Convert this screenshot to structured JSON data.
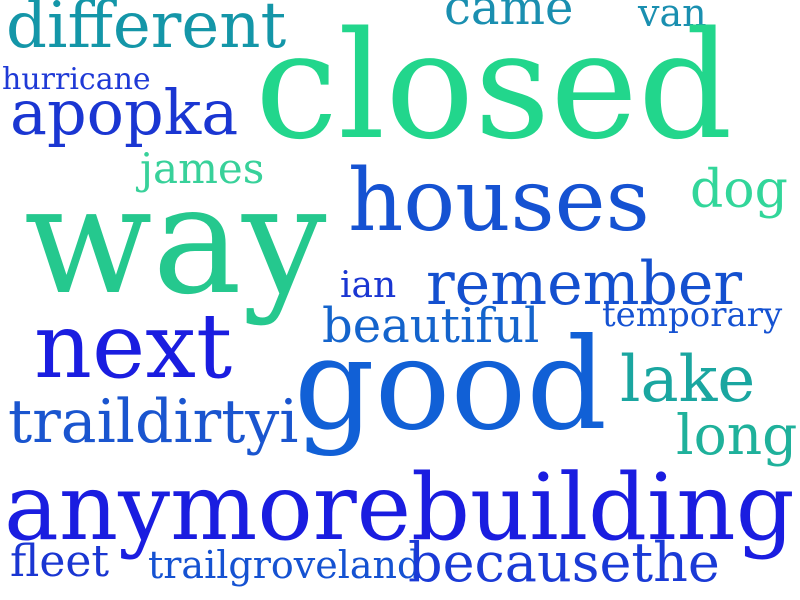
{
  "words": [
    {
      "text": "different",
      "color": "#1496a8"
    },
    {
      "text": "came",
      "color": "#1a8fb0"
    },
    {
      "text": "van",
      "color": "#1a8fb0"
    },
    {
      "text": "closed",
      "color": "#22d68c"
    },
    {
      "text": "hurricane",
      "color": "#1f3ad6"
    },
    {
      "text": "apopka",
      "color": "#1a36d2"
    },
    {
      "text": "james",
      "color": "#38d19a"
    },
    {
      "text": "dog",
      "color": "#32d69a"
    },
    {
      "text": "way",
      "color": "#25c88e"
    },
    {
      "text": "houses",
      "color": "#1552d2"
    },
    {
      "text": "ian",
      "color": "#1a36d2"
    },
    {
      "text": "remember",
      "color": "#1450cf"
    },
    {
      "text": "temporary",
      "color": "#1552d2"
    },
    {
      "text": "next",
      "color": "#1a1de0"
    },
    {
      "text": "beautiful",
      "color": "#1464cc"
    },
    {
      "text": "good",
      "color": "#1160d6"
    },
    {
      "text": "lake",
      "color": "#1aa6a0"
    },
    {
      "text": "traildirtyi",
      "color": "#1a55cf"
    },
    {
      "text": "long",
      "color": "#1fb19b"
    },
    {
      "text": "anymorebuilding",
      "color": "#1a1de0"
    },
    {
      "text": "fleet",
      "color": "#1a36d2"
    },
    {
      "text": "trailgroveland",
      "color": "#1552d2"
    },
    {
      "text": "becausethe",
      "color": "#1a3ad6"
    }
  ]
}
